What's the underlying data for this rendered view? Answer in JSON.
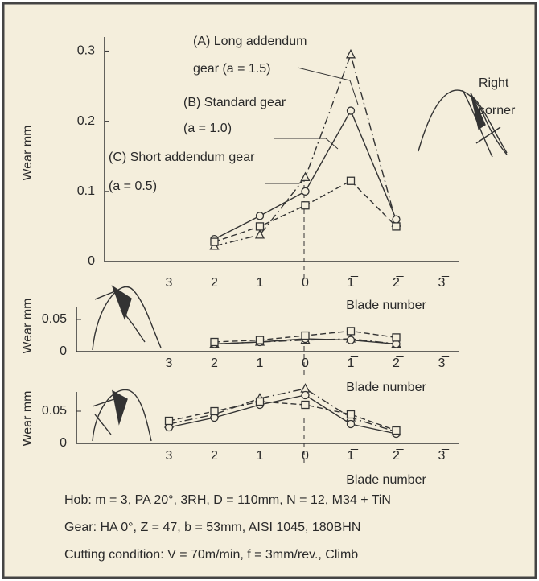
{
  "chart_data": [
    {
      "type": "line",
      "y_label": "Wear mm",
      "x_label": "Blade number",
      "categories": [
        "3",
        "2",
        "1",
        "0",
        "1̅",
        "2̅",
        "3̅"
      ],
      "ylim": [
        0,
        0.32
      ],
      "yticks": [
        0,
        0.1,
        0.2,
        0.3
      ],
      "series": [
        {
          "marker": "triangle",
          "dash": "dashdot",
          "color": "#333333",
          "values": [
            null,
            0.022,
            0.038,
            0.12,
            0.295,
            0.055,
            null
          ]
        },
        {
          "marker": "circle",
          "dash": "solid",
          "color": "#333333",
          "values": [
            null,
            0.032,
            0.065,
            0.1,
            0.215,
            0.06,
            null
          ]
        },
        {
          "marker": "square",
          "dash": "dashed",
          "color": "#333333",
          "values": [
            null,
            0.028,
            0.05,
            0.08,
            0.115,
            0.05,
            null
          ]
        }
      ],
      "annotations": [
        "(A) Long addendum",
        "gear (a = 1.5)",
        "(B) Standard gear",
        "(a = 1.0)",
        "(C) Short addendum gear",
        "(a = 0.5)",
        "Right",
        "corner"
      ]
    },
    {
      "type": "line",
      "y_label": "Wear mm",
      "x_label": "Blade number",
      "categories": [
        "3",
        "2",
        "1",
        "0",
        "1̅",
        "2̅",
        "3̅"
      ],
      "ylim": [
        0,
        0.07
      ],
      "yticks": [
        0,
        0.05
      ],
      "series": [
        {
          "marker": "triangle",
          "dash": "dashdot",
          "color": "#333333",
          "values": [
            null,
            0.012,
            0.015,
            0.018,
            0.02,
            0.012,
            null
          ]
        },
        {
          "marker": "circle",
          "dash": "solid",
          "color": "#333333",
          "values": [
            null,
            0.012,
            0.015,
            0.02,
            0.018,
            0.012,
            null
          ]
        },
        {
          "marker": "square",
          "dash": "dashed",
          "color": "#333333",
          "values": [
            null,
            0.015,
            0.018,
            0.025,
            0.032,
            0.022,
            null
          ]
        }
      ]
    },
    {
      "type": "line",
      "y_label": "Wear mm",
      "x_label": "Blade number",
      "categories": [
        "3",
        "2",
        "1",
        "0",
        "1̅",
        "2̅",
        "3̅"
      ],
      "ylim": [
        0,
        0.08
      ],
      "yticks": [
        0,
        0.05
      ],
      "series": [
        {
          "marker": "triangle",
          "dash": "dashdot",
          "color": "#333333",
          "values": [
            0.03,
            0.045,
            0.07,
            0.085,
            0.04,
            0.018,
            null
          ]
        },
        {
          "marker": "circle",
          "dash": "solid",
          "color": "#333333",
          "values": [
            0.025,
            0.04,
            0.06,
            0.075,
            0.03,
            0.015,
            null
          ]
        },
        {
          "marker": "square",
          "dash": "dashed",
          "color": "#333333",
          "values": [
            0.035,
            0.05,
            0.065,
            0.06,
            0.045,
            0.02,
            null
          ]
        }
      ]
    }
  ],
  "notes": [
    "Hob: m = 3, PA 20°, 3RH, D = 110mm, N = 12, M34 + TiN",
    "Gear: HA 0°, Z = 47, b = 53mm, AISI 1045, 180BHN",
    "Cutting condition: V = 70m/min, f = 3mm/rev., Climb"
  ]
}
